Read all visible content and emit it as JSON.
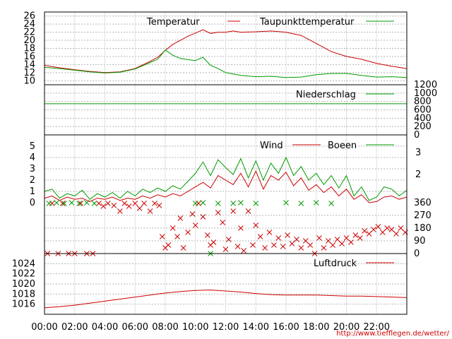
{
  "x_ticks": [
    "00:00",
    "02:00",
    "04:00",
    "06:00",
    "08:00",
    "10:00",
    "12:00",
    "14:00",
    "16:00",
    "18:00",
    "20:00",
    "22:00"
  ],
  "source_url": "http://www.tiefflegen.de/wetter/",
  "colors": {
    "red": "#cc0000",
    "green": "#009900",
    "grid": "#b4b4b4",
    "frame": "#000000"
  },
  "chart_data": [
    {
      "type": "line",
      "panel": "temperature",
      "ylim": [
        9,
        27
      ],
      "yticks": [
        10,
        12,
        14,
        16,
        18,
        20,
        22,
        24,
        26
      ],
      "xlim_hours": [
        0,
        24
      ],
      "series": [
        {
          "name": "Temperatur",
          "color": "red",
          "x": [
            0,
            1,
            2,
            3,
            4,
            5,
            6,
            7,
            7.5,
            8,
            8.5,
            9,
            9.5,
            10,
            10.5,
            11,
            11.5,
            12,
            12.5,
            13,
            14,
            15,
            16,
            17,
            18,
            19,
            20,
            21,
            22,
            23,
            24
          ],
          "y": [
            13.8,
            13.2,
            12.7,
            12.3,
            12.0,
            12.2,
            13.0,
            14.8,
            15.8,
            17.5,
            19.0,
            20.0,
            21.0,
            21.8,
            22.6,
            21.7,
            22.0,
            22.0,
            22.3,
            22.0,
            22.1,
            22.3,
            22.0,
            21.2,
            19.2,
            17.2,
            16.0,
            15.3,
            14.3,
            13.6,
            13.0
          ]
        },
        {
          "name": "Taupunkttemperatur",
          "color": "green",
          "x": [
            0,
            1,
            2,
            3,
            4,
            5,
            6,
            7,
            7.5,
            8,
            8.5,
            9,
            9.5,
            10,
            10.5,
            11,
            11.5,
            12,
            13,
            14,
            15,
            16,
            17,
            18,
            19,
            20,
            21,
            22,
            23,
            24
          ],
          "y": [
            13.3,
            13.0,
            12.6,
            12.2,
            11.9,
            12.1,
            12.9,
            14.5,
            15.3,
            17.6,
            16.3,
            15.5,
            15.2,
            15.0,
            15.8,
            13.8,
            13.0,
            12.0,
            11.3,
            11.0,
            11.1,
            10.8,
            10.9,
            11.5,
            11.8,
            11.8,
            11.3,
            10.9,
            11.0,
            10.8
          ]
        }
      ]
    },
    {
      "type": "line",
      "panel": "precipitation",
      "ylim": [
        0,
        1200
      ],
      "yticks": [
        0,
        200,
        400,
        600,
        800,
        1000,
        1200
      ],
      "series": [
        {
          "name": "Niederschlag",
          "color": "green",
          "x": [
            0,
            24
          ],
          "y": [
            745,
            745
          ]
        }
      ]
    },
    {
      "type": "line",
      "panel": "wind",
      "ylim": [
        0,
        6
      ],
      "yticks": [
        0,
        1,
        2,
        3,
        4,
        5
      ],
      "right_ticks": [
        "2",
        "3"
      ],
      "series": [
        {
          "name": "Wind",
          "color": "red",
          "x": [
            0,
            0.5,
            1,
            1.5,
            2,
            2.5,
            3,
            3.5,
            4,
            4.5,
            5,
            5.5,
            6,
            6.5,
            7,
            7.5,
            8,
            8.5,
            9,
            9.5,
            10,
            10.5,
            11,
            11.5,
            12,
            12.5,
            13,
            13.5,
            14,
            14.5,
            15,
            15.5,
            16,
            16.5,
            17,
            17.5,
            18,
            18.5,
            19,
            19.5,
            20,
            20.5,
            21,
            21.5,
            22,
            22.5,
            23,
            23.5,
            24
          ],
          "y": [
            0.4,
            0.6,
            0.2,
            0.5,
            0.3,
            0.4,
            0.1,
            0.4,
            0.3,
            0.5,
            0.2,
            0.4,
            0.3,
            0.6,
            0.4,
            0.7,
            0.5,
            0.8,
            0.6,
            1.0,
            1.4,
            1.8,
            1.3,
            2.4,
            2.0,
            1.6,
            2.6,
            1.4,
            2.8,
            1.2,
            2.4,
            2.0,
            2.7,
            1.5,
            2.2,
            1.1,
            1.6,
            0.9,
            1.4,
            0.6,
            1.2,
            0.3,
            0.7,
            0.0,
            0.1,
            0.5,
            0.6,
            0.3,
            0.5
          ]
        },
        {
          "name": "Boeen",
          "color": "green",
          "x": [
            0,
            0.5,
            1,
            1.5,
            2,
            2.5,
            3,
            3.5,
            4,
            4.5,
            5,
            5.5,
            6,
            6.5,
            7,
            7.5,
            8,
            8.5,
            9,
            9.5,
            10,
            10.5,
            11,
            11.5,
            12,
            12.5,
            13,
            13.5,
            14,
            14.5,
            15,
            15.5,
            16,
            16.5,
            17,
            17.5,
            18,
            18.5,
            19,
            19.5,
            20,
            20.5,
            21,
            21.5,
            22,
            22.5,
            23,
            23.5,
            24
          ],
          "y": [
            1.0,
            1.2,
            0.4,
            0.8,
            0.6,
            1.1,
            0.3,
            0.8,
            0.5,
            0.9,
            0.4,
            1.0,
            0.6,
            1.2,
            0.9,
            1.3,
            1.0,
            1.5,
            1.2,
            1.9,
            2.6,
            3.6,
            2.4,
            3.8,
            3.1,
            2.5,
            3.9,
            2.2,
            3.7,
            2.0,
            3.5,
            2.6,
            4.0,
            2.4,
            3.2,
            2.0,
            2.6,
            1.6,
            2.4,
            1.3,
            2.4,
            0.6,
            1.4,
            0.2,
            0.5,
            1.4,
            1.2,
            0.6,
            1.1
          ]
        }
      ]
    },
    {
      "type": "scatter",
      "panel": "wind_direction",
      "ylim": [
        0,
        360
      ],
      "yticks": [
        0,
        90,
        180,
        270,
        360
      ],
      "series": [
        {
          "color": "red",
          "points": [
            [
              0.2,
              0
            ],
            [
              0.5,
              355
            ],
            [
              0.9,
              0
            ],
            [
              1.2,
              355
            ],
            [
              1.6,
              0
            ],
            [
              2.0,
              0
            ],
            [
              2.4,
              355
            ],
            [
              2.8,
              0
            ],
            [
              3.2,
              0
            ],
            [
              3.6,
              355
            ],
            [
              3.9,
              335
            ],
            [
              4.2,
              355
            ],
            [
              4.6,
              340
            ],
            [
              5.0,
              300
            ],
            [
              5.3,
              355
            ],
            [
              5.6,
              335
            ],
            [
              6.0,
              355
            ],
            [
              6.3,
              320
            ],
            [
              6.6,
              355
            ],
            [
              7.0,
              300
            ],
            [
              7.3,
              355
            ],
            [
              7.6,
              340
            ],
            [
              7.8,
              120
            ],
            [
              8.0,
              40
            ],
            [
              8.2,
              60
            ],
            [
              8.5,
              180
            ],
            [
              8.8,
              120
            ],
            [
              9.0,
              250
            ],
            [
              9.2,
              40
            ],
            [
              9.5,
              150
            ],
            [
              9.8,
              280
            ],
            [
              10.0,
              200
            ],
            [
              10.2,
              355
            ],
            [
              10.5,
              260
            ],
            [
              10.8,
              130
            ],
            [
              11.0,
              60
            ],
            [
              11.2,
              80
            ],
            [
              11.5,
              290
            ],
            [
              11.8,
              220
            ],
            [
              12.0,
              30
            ],
            [
              12.2,
              100
            ],
            [
              12.5,
              300
            ],
            [
              12.8,
              50
            ],
            [
              13.0,
              180
            ],
            [
              13.2,
              20
            ],
            [
              13.5,
              300
            ],
            [
              13.8,
              60
            ],
            [
              14.0,
              200
            ],
            [
              14.3,
              120
            ],
            [
              14.6,
              40
            ],
            [
              14.9,
              150
            ],
            [
              15.2,
              60
            ],
            [
              15.5,
              110
            ],
            [
              15.8,
              50
            ],
            [
              16.1,
              130
            ],
            [
              16.4,
              70
            ],
            [
              16.7,
              100
            ],
            [
              17.0,
              40
            ],
            [
              17.3,
              90
            ],
            [
              17.6,
              60
            ],
            [
              17.9,
              0
            ],
            [
              18.2,
              110
            ],
            [
              18.5,
              40
            ],
            [
              18.8,
              90
            ],
            [
              19.1,
              60
            ],
            [
              19.4,
              100
            ],
            [
              19.7,
              70
            ],
            [
              20.0,
              110
            ],
            [
              20.3,
              80
            ],
            [
              20.6,
              130
            ],
            [
              20.9,
              110
            ],
            [
              21.2,
              160
            ],
            [
              21.5,
              140
            ],
            [
              21.8,
              170
            ],
            [
              22.1,
              190
            ],
            [
              22.4,
              150
            ],
            [
              22.7,
              180
            ],
            [
              23.0,
              170
            ],
            [
              23.3,
              140
            ],
            [
              23.6,
              180
            ],
            [
              23.9,
              150
            ]
          ]
        },
        {
          "color": "green",
          "points": [
            [
              0.3,
              355
            ],
            [
              0.8,
              360
            ],
            [
              1.3,
              355
            ],
            [
              1.8,
              360
            ],
            [
              2.3,
              355
            ],
            [
              2.8,
              360
            ],
            [
              3.3,
              355
            ],
            [
              10.0,
              355
            ],
            [
              10.5,
              360
            ],
            [
              11.0,
              0
            ],
            [
              11.5,
              355
            ],
            [
              12.5,
              355
            ],
            [
              13.0,
              360
            ],
            [
              14.0,
              355
            ],
            [
              16.0,
              360
            ],
            [
              17.0,
              355
            ],
            [
              18.0,
              360
            ],
            [
              19.0,
              355
            ]
          ]
        }
      ]
    },
    {
      "type": "line",
      "panel": "pressure",
      "ylim": [
        1014,
        1026
      ],
      "yticks": [
        1016,
        1018,
        1020,
        1022,
        1024
      ],
      "series": [
        {
          "name": "Luftdruck",
          "color": "red",
          "x": [
            0,
            1,
            2,
            3,
            4,
            5,
            6,
            7,
            8,
            9,
            10,
            11,
            12,
            13,
            14,
            15,
            16,
            17,
            18,
            19,
            20,
            21,
            22,
            23,
            24
          ],
          "y": [
            1015.3,
            1015.5,
            1015.8,
            1016.2,
            1016.6,
            1017.0,
            1017.4,
            1017.8,
            1018.2,
            1018.5,
            1018.7,
            1018.8,
            1018.6,
            1018.4,
            1018.1,
            1017.9,
            1017.8,
            1017.8,
            1017.8,
            1017.7,
            1017.6,
            1017.6,
            1017.5,
            1017.4,
            1017.3
          ]
        }
      ]
    }
  ]
}
